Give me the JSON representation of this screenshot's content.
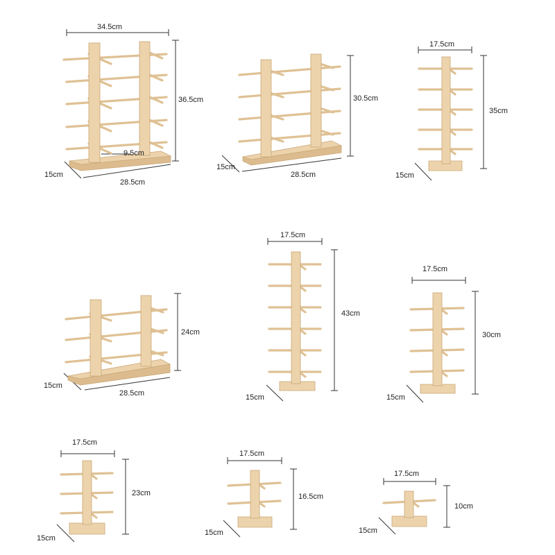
{
  "colors": {
    "background": "#ffffff",
    "wood_light": "#ecd3ac",
    "wood_shadow": "#c9a777",
    "dimension_line": "#333333"
  },
  "products": [
    {
      "dims": {
        "width": "34.5cm",
        "height": "36.5cm",
        "depth": "15cm",
        "base": "28.5cm",
        "gap": "9.5cm"
      }
    },
    {
      "dims": {
        "height": "30.5cm",
        "depth": "15cm",
        "base": "28.5cm"
      }
    },
    {
      "dims": {
        "width": "17.5cm",
        "height": "35cm",
        "depth": "15cm"
      }
    },
    {
      "dims": {
        "height": "24cm",
        "depth": "15cm",
        "base": "28.5cm"
      }
    },
    {
      "dims": {
        "width": "17.5cm",
        "height": "43cm",
        "depth": "15cm"
      }
    },
    {
      "dims": {
        "width": "17.5cm",
        "height": "30cm",
        "depth": "15cm"
      }
    },
    {
      "dims": {
        "width": "17.5cm",
        "height": "23cm",
        "depth": "15cm"
      }
    },
    {
      "dims": {
        "width": "17.5cm",
        "height": "16.5cm",
        "depth": "15cm"
      }
    },
    {
      "dims": {
        "width": "17.5cm",
        "height": "10cm",
        "depth": "15cm"
      }
    }
  ]
}
